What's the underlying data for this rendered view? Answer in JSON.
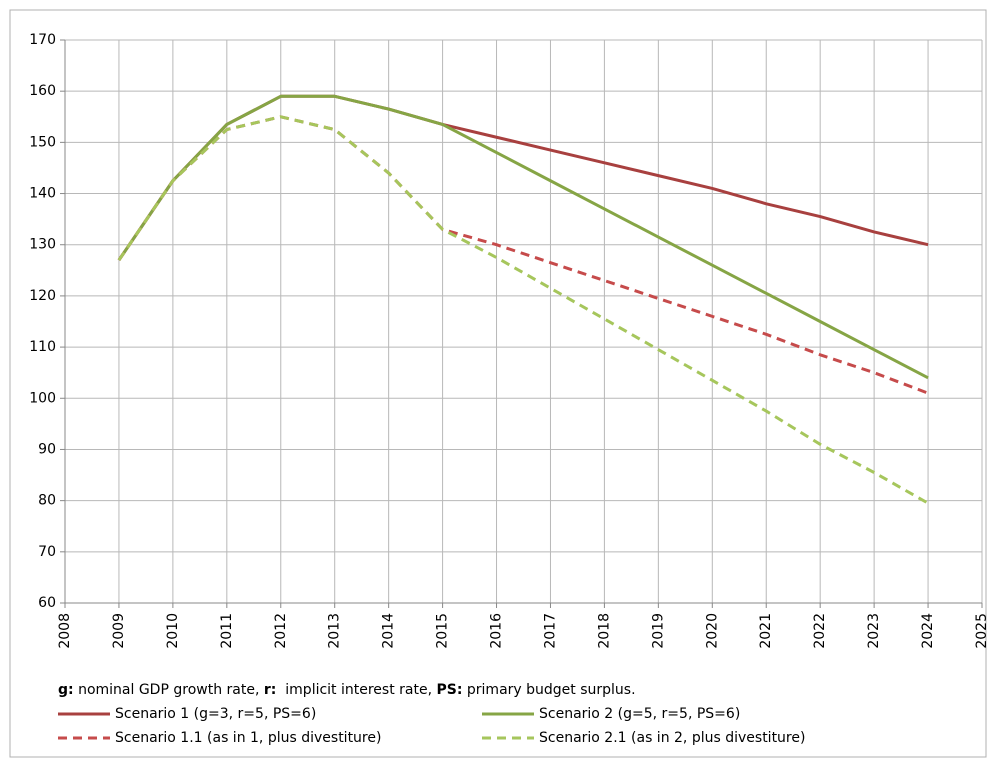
{
  "chart_data": {
    "type": "line",
    "x": [
      2009,
      2010,
      2011,
      2012,
      2013,
      2014,
      2015,
      2016,
      2017,
      2018,
      2019,
      2020,
      2021,
      2022,
      2023,
      2024
    ],
    "series": [
      {
        "name": "Scenario 1 (g=3, r=5, PS=6)",
        "color": "#a8403f",
        "dash": false,
        "values": [
          127,
          142.5,
          153.5,
          159,
          159,
          156.5,
          153.5,
          151,
          148.5,
          146,
          143.5,
          141,
          138,
          135.5,
          132.5,
          130
        ]
      },
      {
        "name": "Scenario 2 (g=5, r=5, PS=6)",
        "color": "#86a545",
        "dash": false,
        "values": [
          127,
          142.5,
          153.5,
          159,
          159,
          156.5,
          153.5,
          148,
          142.5,
          137,
          131.5,
          126,
          120.5,
          115,
          109.5,
          104
        ]
      },
      {
        "name": "Scenario 1.1 (as in 1, plus divestiture)",
        "color": "#c64b4b",
        "dash": true,
        "values": [
          127,
          142.5,
          152.5,
          155,
          152.5,
          144,
          133,
          130,
          126.5,
          123,
          119.5,
          116,
          112.5,
          108.5,
          105,
          101
        ]
      },
      {
        "name": "Scenario 2.1 (as in 2, plus divestiture)",
        "color": "#a6c65c",
        "dash": true,
        "values": [
          127,
          142.5,
          152.5,
          155,
          152.5,
          144,
          133,
          127.5,
          121.5,
          115.5,
          109.5,
          103.5,
          97.5,
          91,
          85.5,
          79.5
        ]
      }
    ],
    "xlim": [
      2008,
      2025
    ],
    "xticks": [
      2008,
      2009,
      2010,
      2011,
      2012,
      2013,
      2014,
      2015,
      2016,
      2017,
      2018,
      2019,
      2020,
      2021,
      2022,
      2023,
      2024,
      2025
    ],
    "ylim": [
      60,
      170
    ],
    "yticks": [
      60,
      70,
      80,
      90,
      100,
      110,
      120,
      130,
      140,
      150,
      160,
      170
    ],
    "grid": true,
    "note": [
      {
        "text": "g:",
        "bold": true
      },
      {
        "text": " nominal GDP growth rate, ",
        "bold": false
      },
      {
        "text": "r:",
        "bold": true
      },
      {
        "text": "  implicit interest rate, ",
        "bold": false
      },
      {
        "text": "PS:",
        "bold": true
      },
      {
        "text": " primary budget surplus.",
        "bold": false
      }
    ]
  }
}
